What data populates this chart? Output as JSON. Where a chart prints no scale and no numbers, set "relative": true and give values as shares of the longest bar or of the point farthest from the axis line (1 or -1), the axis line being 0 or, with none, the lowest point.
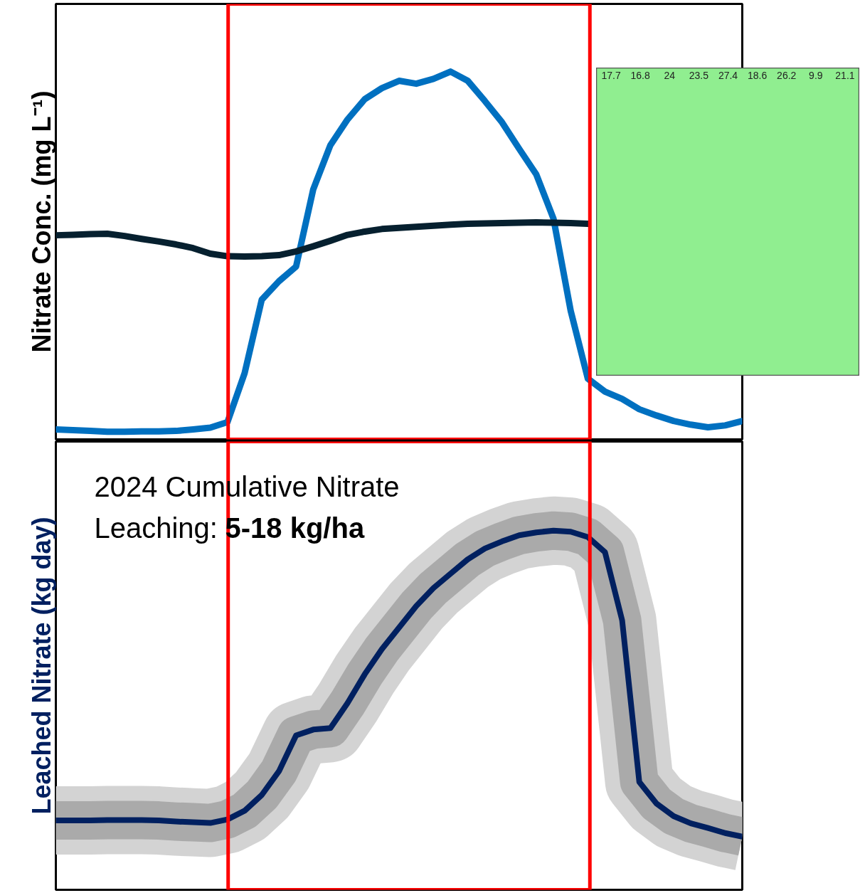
{
  "chart_data": [
    {
      "type": "line",
      "relative": true,
      "ylabel": "Nitrate Conc. (mg L⁻¹)",
      "categories": [
        null,
        null,
        null,
        null,
        null,
        null,
        null,
        null,
        null,
        null,
        null,
        null,
        null,
        null,
        null,
        null,
        null,
        null,
        null,
        null,
        null,
        null,
        null,
        null,
        null,
        null,
        null,
        null,
        null,
        null,
        null,
        null,
        null,
        null,
        null,
        null,
        null,
        null,
        null,
        null,
        null
      ],
      "series": [
        {
          "color": "#0070c0",
          "values": [
            0.027,
            0.025,
            0.023,
            0.021,
            0.021,
            0.022,
            0.022,
            0.023,
            0.027,
            0.032,
            0.047,
            0.18,
            0.38,
            0.43,
            0.47,
            0.68,
            0.8,
            0.87,
            0.925,
            0.955,
            0.975,
            0.967,
            0.98,
            1.0,
            0.975,
            0.92,
            0.862,
            0.79,
            0.72,
            0.6,
            0.35,
            0.165,
            0.13,
            0.11,
            0.082,
            0.065,
            0.05,
            0.04,
            0.033,
            0.038,
            0.05
          ]
        },
        {
          "color": "#06202f",
          "values": [
            0.555,
            0.556,
            0.558,
            0.559,
            0.553,
            0.545,
            0.538,
            0.53,
            0.52,
            0.505,
            0.498,
            0.497,
            0.498,
            0.501,
            0.511,
            0.525,
            0.54,
            0.556,
            0.565,
            0.572,
            0.575,
            0.578,
            0.581,
            0.584,
            0.586,
            0.587,
            0.588,
            0.589,
            0.59,
            0.589,
            0.588,
            0.586,
            null,
            null,
            null,
            null,
            null,
            null,
            null,
            null,
            null
          ]
        }
      ]
    },
    {
      "type": "other",
      "categories": [
        "17.7",
        "16.8",
        "24",
        "23.5",
        "27.4",
        "18.6",
        "26.2",
        "9.9",
        "21.1"
      ]
    },
    {
      "type": "line",
      "relative": true,
      "ylabel": "Leached Nitrate (kg day)",
      "categories": [
        null,
        null,
        null,
        null,
        null,
        null,
        null,
        null,
        null,
        null,
        null,
        null,
        null,
        null,
        null,
        null,
        null,
        null,
        null,
        null,
        null,
        null,
        null,
        null,
        null,
        null,
        null,
        null,
        null,
        null,
        null,
        null,
        null,
        null,
        null,
        null,
        null,
        null,
        null,
        null,
        null
      ],
      "annotations": [
        "2024 Cumulative Nitrate Leaching:",
        "5-18 kg/ha"
      ],
      "series": [
        {
          "color": "#002060",
          "values": [
            0.193,
            0.193,
            0.193,
            0.194,
            0.194,
            0.194,
            0.193,
            0.19,
            0.188,
            0.186,
            0.196,
            0.22,
            0.264,
            0.33,
            0.43,
            0.446,
            0.45,
            0.52,
            0.6,
            0.67,
            0.73,
            0.79,
            0.84,
            0.88,
            0.92,
            0.95,
            0.97,
            0.987,
            0.995,
            1.0,
            0.997,
            0.982,
            0.94,
            0.75,
            0.3,
            0.24,
            0.205,
            0.185,
            0.172,
            0.158,
            0.148
          ]
        }
      ]
    }
  ]
}
